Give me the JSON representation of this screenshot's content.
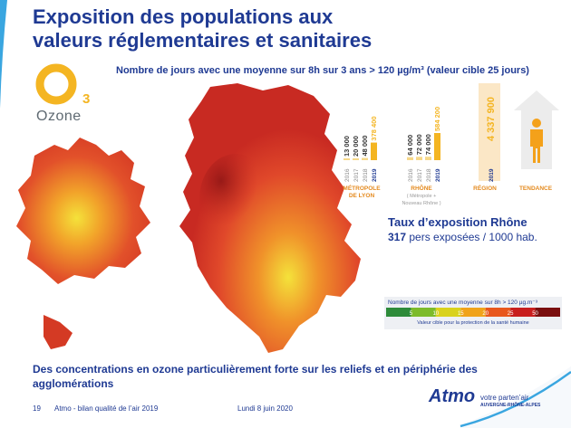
{
  "title": {
    "line1": "Exposition des populations aux",
    "line2": "valeurs réglementaires et sanitaires"
  },
  "logo": {
    "letter": "O",
    "subscript": "3",
    "label": "Ozone",
    "icon": "ozone-logo-icon",
    "color": "#f4b522"
  },
  "subtitle": "Nombre de jours avec une moyenne sur 8h sur 3 ans > 120 µg/m³ (valeur cible 25 jours)",
  "chart_data": {
    "type": "bar",
    "series": [
      {
        "name": "MÉTROPOLE DE LYON",
        "x": [
          "2016",
          "2017",
          "2018",
          "2019"
        ],
        "values": [
          13000,
          20000,
          48000,
          378400
        ],
        "labels": [
          "13 000",
          "20 000",
          "48 000",
          "378 400"
        ]
      },
      {
        "name": "RHÔNE",
        "note": "( Métropole + Nouveau Rhône )",
        "x": [
          "2016",
          "2017",
          "2018",
          "2019"
        ],
        "values": [
          64000,
          72000,
          74000,
          584200
        ],
        "labels": [
          "64 000",
          "72 000",
          "74 000",
          "584 200"
        ]
      },
      {
        "name": "RÉGION",
        "x": [
          "2019"
        ],
        "values": [
          4337900
        ],
        "labels": [
          "4 337 900"
        ]
      }
    ],
    "trend_label": "TENDANCE",
    "colors": {
      "past_bar": "#f6d88a",
      "current_bar": "#f4b522",
      "region_band": "#fbe7c6",
      "trend": "#f4a11a"
    }
  },
  "rate": {
    "title": "Taux d’exposition Rhône",
    "value": "317",
    "unit": "pers exposées / 1000 hab."
  },
  "legend": {
    "title": "Nombre de jours avec une moyenne sur 8h > 120 µg.m⁻³",
    "ticks": [
      "5",
      "10",
      "15",
      "20",
      "25",
      "50"
    ],
    "colors": [
      "#2e8b3a",
      "#7dbb2a",
      "#d9d21c",
      "#f0a31a",
      "#e8571c",
      "#c81e1e",
      "#7a0f0f"
    ],
    "note": "Valeur cible pour la protection de la santé humaine"
  },
  "bottom_text": "Des concentrations en ozone particulièrement forte sur les reliefs et en périphérie des agglomérations",
  "footer": {
    "page": "19",
    "report": "Atmo - bilan qualité de l’air 2019",
    "date": "Lundi 8 juin 2020"
  },
  "brand": {
    "name": "Atmo",
    "tagline": "votre parten’air",
    "region": "AUVERGNE-RHÔNE-ALPES"
  }
}
